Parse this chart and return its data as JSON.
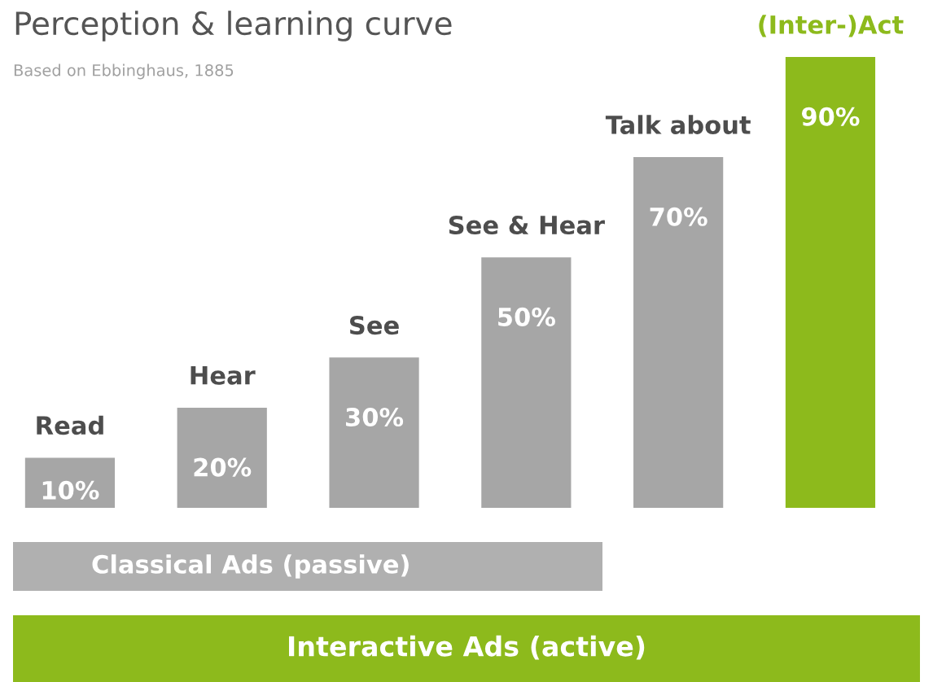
{
  "chart_data": {
    "type": "bar",
    "title": "Perception & learning curve",
    "subtitle": "Based on Ebbinghaus, 1885",
    "categories": [
      "Read",
      "Hear",
      "See",
      "See & Hear",
      "Talk about",
      "(Inter-)Act"
    ],
    "values": [
      10,
      20,
      30,
      50,
      70,
      90
    ],
    "colors": [
      "#a6a6a6",
      "#a6a6a6",
      "#a6a6a6",
      "#a6a6a6",
      "#a6a6a6",
      "#8dba1c"
    ],
    "value_labels": [
      "10%",
      "20%",
      "30%",
      "50%",
      "70%",
      "90%"
    ],
    "annotations": [
      "Classical Ads (passive)",
      "Interactive Ads (active)"
    ]
  }
}
